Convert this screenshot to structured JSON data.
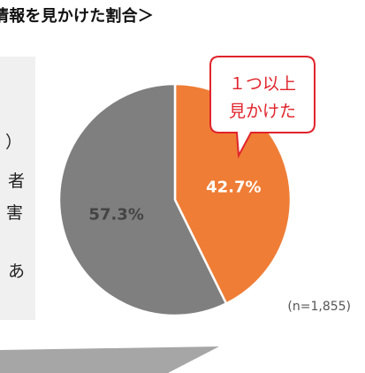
{
  "header": {
    "title": "情報を見かけた割合＞"
  },
  "side_panel": {
    "fragments": [
      "）",
      "者",
      "害",
      "あ"
    ]
  },
  "callout": {
    "line1": "１つ以上",
    "line2": "見かけた"
  },
  "note": "(n=1,855)",
  "colors": {
    "orange": "#ef7d35",
    "gray": "#7f7f7f",
    "callout_border": "#e0242b",
    "callout_text": "#e0242b",
    "band": "#a6a6a6"
  },
  "chart_data": {
    "type": "pie",
    "title": "",
    "slices": [
      {
        "label": "１つ以上見かけた",
        "value": 42.7,
        "display": "42.7%",
        "color": "#ef7d35"
      },
      {
        "label": "",
        "value": 57.3,
        "display": "57.3%",
        "color": "#7f7f7f"
      }
    ],
    "start_angle_deg": 0,
    "direction": "clockwise"
  }
}
